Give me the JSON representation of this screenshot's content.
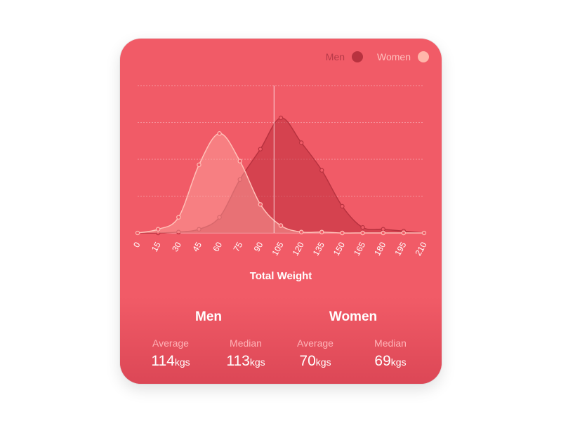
{
  "chart_data": {
    "type": "area",
    "xlabel": "Total Weight",
    "x": [
      0,
      15,
      30,
      45,
      60,
      75,
      90,
      105,
      120,
      135,
      150,
      165,
      180,
      195,
      210
    ],
    "xlim": [
      0,
      210
    ],
    "ylim": [
      0,
      160
    ],
    "grid": true,
    "legend_position": "top-right",
    "series": [
      {
        "name": "Men",
        "color": "#b8323f",
        "values": [
          0,
          0,
          1,
          4,
          17,
          58,
          91,
          125,
          98,
          68,
          29,
          6,
          4,
          2,
          0
        ]
      },
      {
        "name": "Women",
        "color": "#ffb6aa",
        "values": [
          0,
          4,
          17,
          74,
          108,
          78,
          31,
          8,
          1,
          1,
          0,
          0,
          0,
          0,
          0
        ]
      }
    ],
    "cursor_x": 100
  },
  "stats": {
    "men": {
      "title": "Men",
      "average_label": "Average",
      "average_value": "114",
      "median_label": "Median",
      "median_value": "113",
      "unit": "kgs"
    },
    "women": {
      "title": "Women",
      "average_label": "Average",
      "average_value": "70",
      "median_label": "Median",
      "median_value": "69",
      "unit": "kgs"
    }
  },
  "colors": {
    "card": "#f15b67",
    "men": "#b8323f",
    "women": "#ffb6aa"
  }
}
